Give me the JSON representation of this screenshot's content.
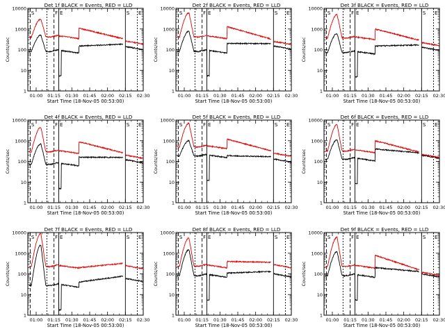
{
  "figure": {
    "xlabel": "Start Time (18-Nov-05 00:53:00)",
    "ylabel": "Counts/sec",
    "x_ticks": [
      "01:00",
      "01:15",
      "01:30",
      "01:45",
      "02:00",
      "02:15",
      "02:30"
    ],
    "y_ticks": [
      "1",
      "10",
      "100",
      "1000",
      "10000"
    ],
    "colors": {
      "events": "#000000",
      "lld": "#e00000",
      "frame": "#000000"
    }
  },
  "chart_data": [
    {
      "type": "line",
      "title": "Det 1f BLACK = Events, RED = LLD",
      "xlabel": "Start Time (18-Nov-05 00:53:00)",
      "ylabel": "Counts/sec",
      "y_scale": "log",
      "ylim": [
        1,
        10000
      ],
      "x_ticks": [
        "01:00",
        "01:15",
        "01:30",
        "01:45",
        "02:00",
        "02:15",
        "02:30"
      ],
      "markers": [
        "S",
        "F",
        "E",
        "S",
        "E"
      ],
      "series": [
        {
          "name": "Events",
          "color": "#000000",
          "peak": 500,
          "plateau": 90,
          "step": 150,
          "end": 140
        },
        {
          "name": "LLD",
          "color": "#e00000",
          "peak": 3000,
          "plateau": 450,
          "step": 1100,
          "end": 260
        }
      ]
    },
    {
      "type": "line",
      "title": "Det 2f BLACK = Events, RED = LLD",
      "xlabel": "Start Time (18-Nov-05 00:53:00)",
      "ylabel": "Counts/sec",
      "y_scale": "log",
      "ylim": [
        1,
        10000
      ],
      "x_ticks": [
        "01:00",
        "01:15",
        "01:30",
        "01:45",
        "02:00",
        "02:15",
        "02:30"
      ],
      "markers": [
        "S",
        "F",
        "E",
        "S",
        "E"
      ],
      "series": [
        {
          "name": "Events",
          "color": "#000000",
          "peak": 800,
          "plateau": 90,
          "step": 200,
          "end": 150
        },
        {
          "name": "LLD",
          "color": "#e00000",
          "peak": 6000,
          "plateau": 450,
          "step": 1300,
          "end": 250
        }
      ]
    },
    {
      "type": "line",
      "title": "Det 3f BLACK = Events, RED = LLD",
      "xlabel": "Start Time (18-Nov-05 00:53:00)",
      "ylabel": "Counts/sec",
      "y_scale": "log",
      "ylim": [
        1,
        10000
      ],
      "x_ticks": [
        "01:00",
        "01:15",
        "01:30",
        "01:45",
        "02:00",
        "02:15",
        "02:30"
      ],
      "markers": [
        "S",
        "F",
        "E",
        "S",
        "E"
      ],
      "series": [
        {
          "name": "Events",
          "color": "#000000",
          "peak": 600,
          "plateau": 80,
          "step": 150,
          "end": 130
        },
        {
          "name": "LLD",
          "color": "#e00000",
          "peak": 5000,
          "plateau": 400,
          "step": 1000,
          "end": 220
        }
      ]
    },
    {
      "type": "line",
      "title": "Det 4f BLACK = Events, RED = LLD",
      "xlabel": "Start Time (18-Nov-05 00:53:00)",
      "ylabel": "Counts/sec",
      "y_scale": "log",
      "ylim": [
        1,
        10000
      ],
      "x_ticks": [
        "01:00",
        "01:15",
        "01:30",
        "01:45",
        "02:00",
        "02:15",
        "02:30"
      ],
      "markers": [
        "S",
        "F",
        "E",
        "S",
        "E"
      ],
      "series": [
        {
          "name": "Events",
          "color": "#000000",
          "peak": 700,
          "plateau": 80,
          "step": 160,
          "end": 120
        },
        {
          "name": "LLD",
          "color": "#e00000",
          "peak": 4500,
          "plateau": 320,
          "step": 900,
          "end": 200
        }
      ]
    },
    {
      "type": "line",
      "title": "Det 5f BLACK = Events, RED = LLD",
      "xlabel": "Start Time (18-Nov-05 00:53:00)",
      "ylabel": "Counts/sec",
      "y_scale": "log",
      "ylim": [
        1,
        10000
      ],
      "x_ticks": [
        "01:00",
        "01:15",
        "01:30",
        "01:45",
        "02:00",
        "02:15",
        "02:30"
      ],
      "markers": [
        "S",
        "F",
        "E",
        "S",
        "E"
      ],
      "series": [
        {
          "name": "Events",
          "color": "#000000",
          "peak": 1000,
          "plateau": 200,
          "step": 190,
          "end": 130
        },
        {
          "name": "LLD",
          "color": "#e00000",
          "peak": 7000,
          "plateau": 550,
          "step": 1200,
          "end": 250
        }
      ]
    },
    {
      "type": "line",
      "title": "Det 6f BLACK = Events, RED = LLD",
      "xlabel": "Start Time (18-Nov-05 00:53:00)",
      "ylabel": "Counts/sec",
      "y_scale": "log",
      "ylim": [
        1,
        10000
      ],
      "x_ticks": [
        "01:00",
        "01:15",
        "01:30",
        "01:45",
        "02:00",
        "02:15",
        "02:30"
      ],
      "markers": [
        "S",
        "F",
        "E",
        "S",
        "E"
      ],
      "series": [
        {
          "name": "Events",
          "color": "#000000",
          "peak": 1100,
          "plateau": 140,
          "step": 400,
          "end": 200
        },
        {
          "name": "LLD",
          "color": "#e00000",
          "peak": 6000,
          "plateau": 350,
          "step": 1000,
          "end": 220
        }
      ]
    },
    {
      "type": "line",
      "title": "Det 7f BLACK = Events, RED = LLD",
      "xlabel": "Start Time (18-Nov-05 00:53:00)",
      "ylabel": "Counts/sec",
      "y_scale": "log",
      "ylim": [
        1,
        10000
      ],
      "x_ticks": [
        "01:00",
        "01:15",
        "01:30",
        "01:45",
        "02:00",
        "02:15",
        "02:30"
      ],
      "markers": [
        "S",
        "F",
        "E",
        "S",
        "E"
      ],
      "series": [
        {
          "name": "Events",
          "color": "#000000",
          "peak": 2500,
          "plateau": 30,
          "step": 40,
          "end": 60
        },
        {
          "name": "LLD",
          "color": "#e00000",
          "peak": 9000,
          "plateau": 250,
          "step": 200,
          "end": 250
        }
      ]
    },
    {
      "type": "line",
      "title": "Det 8f BLACK = Events, RED = LLD",
      "xlabel": "Start Time (18-Nov-05 00:53:00)",
      "ylabel": "Counts/sec",
      "y_scale": "log",
      "ylim": [
        1,
        10000
      ],
      "x_ticks": [
        "01:00",
        "01:15",
        "01:30",
        "01:45",
        "02:00",
        "02:15",
        "02:30"
      ],
      "markers": [
        "S",
        "F",
        "E",
        "S",
        "E"
      ],
      "series": [
        {
          "name": "Events",
          "color": "#000000",
          "peak": 1500,
          "plateau": 90,
          "step": 110,
          "end": 100
        },
        {
          "name": "LLD",
          "color": "#e00000",
          "peak": 5500,
          "plateau": 260,
          "step": 400,
          "end": 280
        }
      ]
    },
    {
      "type": "line",
      "title": "Det 9f BLACK = Events, RED = LLD",
      "xlabel": "Start Time (18-Nov-05 00:53:00)",
      "ylabel": "Counts/sec",
      "y_scale": "log",
      "ylim": [
        1,
        10000
      ],
      "x_ticks": [
        "01:00",
        "01:15",
        "01:30",
        "01:45",
        "02:00",
        "02:15",
        "02:30"
      ],
      "markers": [
        "S",
        "F",
        "E",
        "S",
        "E"
      ],
      "series": [
        {
          "name": "Events",
          "color": "#000000",
          "peak": 1200,
          "plateau": 90,
          "step": 200,
          "end": 100
        },
        {
          "name": "LLD",
          "color": "#e00000",
          "peak": 6000,
          "plateau": 250,
          "step": 800,
          "end": 120
        }
      ]
    }
  ]
}
